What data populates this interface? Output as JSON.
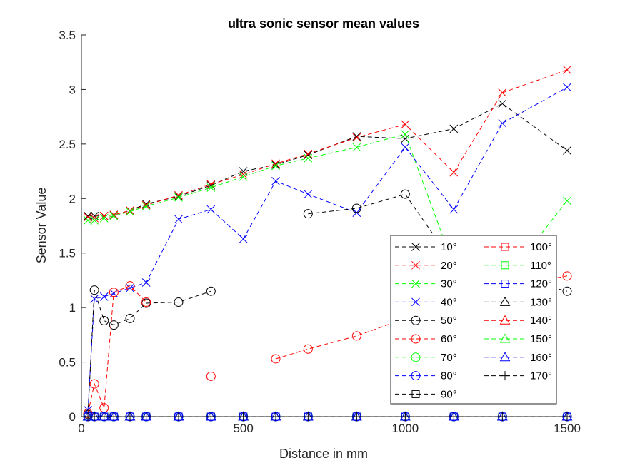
{
  "chart_data": {
    "type": "line",
    "title": "ultra sonic sensor mean values",
    "xlabel": "Distance in mm",
    "ylabel": "Sensor Value",
    "xlim": [
      0,
      1500
    ],
    "ylim": [
      0,
      3.5
    ],
    "xticks": [
      "0",
      "500",
      "1000",
      "1500"
    ],
    "yticks": [
      "0",
      "0.5",
      "1",
      "1.5",
      "2",
      "2.5",
      "3",
      "3.5"
    ],
    "grid": false,
    "legend_position": "bottom-right",
    "line_style": "dashed",
    "series": [
      {
        "name": "10°",
        "color": "#000000",
        "marker": "x",
        "x": [
          20,
          40,
          70,
          100,
          150,
          200,
          300,
          400,
          500,
          600,
          700,
          850,
          1000,
          1150,
          1300,
          1500
        ],
        "y": [
          1.84,
          1.84,
          1.84,
          1.85,
          1.89,
          1.95,
          2.02,
          2.12,
          2.25,
          2.31,
          2.4,
          2.57,
          2.55,
          2.64,
          2.87,
          2.44
        ]
      },
      {
        "name": "20°",
        "color": "#ff0000",
        "marker": "x",
        "x": [
          20,
          40,
          70,
          100,
          150,
          200,
          300,
          400,
          500,
          600,
          700,
          850,
          1000,
          1150,
          1300,
          1500
        ],
        "y": [
          1.83,
          1.82,
          1.84,
          1.85,
          1.89,
          1.94,
          2.03,
          2.13,
          2.22,
          2.32,
          2.41,
          2.56,
          2.68,
          2.24,
          2.97,
          3.18
        ]
      },
      {
        "name": "30°",
        "color": "#00ff00",
        "marker": "x",
        "x": [
          20,
          40,
          70,
          100,
          150,
          200,
          300,
          400,
          500,
          600,
          700,
          850,
          1000,
          1150,
          1300,
          1500
        ],
        "y": [
          1.8,
          1.8,
          1.82,
          1.84,
          1.88,
          1.93,
          2.01,
          2.1,
          2.2,
          2.3,
          2.37,
          2.47,
          2.59,
          1.38,
          1.22,
          1.98
        ]
      },
      {
        "name": "40°",
        "color": "#0000ff",
        "marker": "x",
        "x": [
          20,
          40,
          70,
          100,
          150,
          200,
          300,
          400,
          500,
          600,
          700,
          850,
          1000,
          1150,
          1300,
          1500
        ],
        "y": [
          0.06,
          1.08,
          1.1,
          1.13,
          1.18,
          1.23,
          1.81,
          1.9,
          1.63,
          2.16,
          2.04,
          1.87,
          2.47,
          1.9,
          2.69,
          3.02
        ]
      },
      {
        "name": "50°",
        "color": "#000000",
        "marker": "o",
        "x": [
          20,
          40,
          70,
          100,
          150,
          200,
          300,
          400,
          null,
          700,
          850,
          1000,
          1150,
          1300,
          1500
        ],
        "y": [
          0.02,
          1.16,
          0.88,
          0.84,
          0.9,
          1.04,
          1.05,
          1.15,
          null,
          1.86,
          1.91,
          2.04,
          1.4,
          1.3,
          1.15
        ]
      },
      {
        "name": "60°",
        "color": "#ff0000",
        "marker": "o",
        "x": [
          20,
          40,
          70,
          100,
          150,
          200,
          null,
          400,
          null,
          600,
          700,
          850,
          1000,
          1150,
          1300,
          1500
        ],
        "y": [
          0.03,
          0.3,
          0.08,
          1.14,
          1.2,
          1.05,
          null,
          0.37,
          null,
          0.53,
          0.62,
          0.74,
          0.9,
          1.05,
          1.18,
          1.29
        ]
      },
      {
        "name": "70°",
        "color": "#00ff00",
        "marker": "o",
        "x": [
          20,
          40,
          70,
          100,
          150,
          200,
          300,
          400,
          500,
          600,
          700,
          850,
          1000,
          1150,
          1300,
          1500
        ],
        "y": [
          0,
          0,
          0,
          0,
          0,
          0,
          0,
          0,
          0,
          0,
          0,
          0,
          0,
          0,
          0,
          0
        ]
      },
      {
        "name": "80°",
        "color": "#0000ff",
        "marker": "o",
        "x": [
          20,
          40,
          70,
          100,
          150,
          200,
          300,
          400,
          500,
          600,
          700,
          850,
          1000,
          1150,
          1300,
          1500
        ],
        "y": [
          0,
          0,
          0,
          0,
          0,
          0,
          0,
          0,
          0,
          0,
          0,
          0,
          0,
          0,
          0,
          0
        ]
      },
      {
        "name": "90°",
        "color": "#000000",
        "marker": "s",
        "x": [
          20,
          40,
          70,
          100,
          150,
          200,
          300,
          400,
          500,
          600,
          700,
          850,
          1000,
          1150,
          1300,
          1500
        ],
        "y": [
          0,
          0,
          0,
          0,
          0,
          0,
          0,
          0,
          0,
          0,
          0,
          0,
          0,
          0,
          0,
          0
        ]
      },
      {
        "name": "100°",
        "color": "#ff0000",
        "marker": "s",
        "x": [
          20,
          40,
          70,
          100,
          150,
          200,
          300,
          400,
          500,
          600,
          700,
          850,
          1000,
          1150,
          1300,
          1500
        ],
        "y": [
          0,
          0,
          0,
          0,
          0,
          0,
          0,
          0,
          0,
          0,
          0,
          0,
          0,
          0,
          0,
          0
        ]
      },
      {
        "name": "110°",
        "color": "#00ff00",
        "marker": "s",
        "x": [
          20,
          40,
          70,
          100,
          150,
          200,
          300,
          400,
          500,
          600,
          700,
          850,
          1000,
          1150,
          1300,
          1500
        ],
        "y": [
          0,
          0,
          0,
          0,
          0,
          0,
          0,
          0,
          0,
          0,
          0,
          0,
          0,
          0,
          0,
          0
        ]
      },
      {
        "name": "120°",
        "color": "#0000ff",
        "marker": "s",
        "x": [
          20,
          40,
          70,
          100,
          150,
          200,
          300,
          400,
          500,
          600,
          700,
          850,
          1000,
          1150,
          1300,
          1500
        ],
        "y": [
          0,
          0,
          0,
          0,
          0,
          0,
          0,
          0,
          0,
          0,
          0,
          0,
          0,
          0,
          0,
          0
        ]
      },
      {
        "name": "130°",
        "color": "#000000",
        "marker": "^",
        "x": [
          20,
          40,
          70,
          100,
          150,
          200,
          300,
          400,
          500,
          600,
          700,
          850,
          1000,
          1150,
          1300,
          1500
        ],
        "y": [
          0,
          0,
          0,
          0,
          0,
          0,
          0,
          0,
          0,
          0,
          0,
          0,
          0,
          0,
          0,
          0
        ]
      },
      {
        "name": "140°",
        "color": "#ff0000",
        "marker": "^",
        "x": [
          20,
          40,
          70,
          100,
          150,
          200,
          300,
          400,
          500,
          600,
          700,
          850,
          1000,
          1150,
          1300,
          1500
        ],
        "y": [
          0,
          0,
          0,
          0,
          0,
          0,
          0,
          0,
          0,
          0,
          0,
          0,
          0,
          0,
          0,
          0
        ]
      },
      {
        "name": "150°",
        "color": "#00ff00",
        "marker": "^",
        "x": [
          20,
          40,
          70,
          100,
          150,
          200,
          300,
          400,
          500,
          600,
          700,
          850,
          1000,
          1150,
          1300,
          1500
        ],
        "y": [
          0,
          0,
          0,
          0,
          0,
          0,
          0,
          0,
          0,
          0,
          0,
          0,
          0,
          0,
          0,
          0
        ]
      },
      {
        "name": "160°",
        "color": "#0000ff",
        "marker": "^",
        "x": [
          20,
          40,
          70,
          100,
          150,
          200,
          300,
          400,
          500,
          600,
          700,
          850,
          1000,
          1150,
          1300,
          1500
        ],
        "y": [
          0,
          0,
          0,
          0,
          0,
          0,
          0,
          0,
          0,
          0,
          0,
          0,
          0,
          0,
          0,
          0
        ]
      },
      {
        "name": "170°",
        "color": "#000000",
        "marker": "+",
        "x": [
          20,
          40,
          70,
          100,
          150,
          200,
          300,
          400,
          500,
          600,
          700,
          850,
          1000,
          1150,
          1300,
          1500
        ],
        "y": [
          0,
          0,
          0,
          0,
          0,
          0,
          0,
          0,
          0,
          0,
          0,
          0,
          0,
          0,
          0,
          0
        ]
      }
    ]
  }
}
